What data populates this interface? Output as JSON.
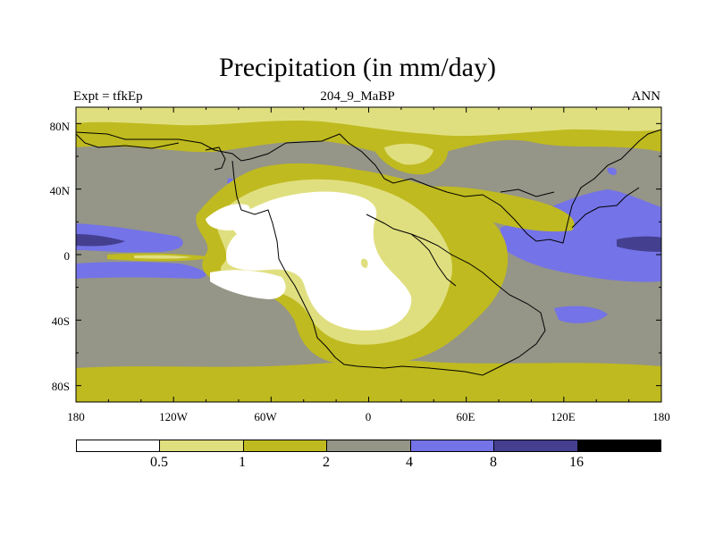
{
  "title": "Precipitation (in mm/day)",
  "subtitle_left": "Expt = tfkEp",
  "subtitle_center": "204_9_MaBP",
  "subtitle_right": "ANN",
  "y_ticks": [
    "80N",
    "40N",
    "0",
    "40S",
    "80S"
  ],
  "x_ticks": [
    "180",
    "120W",
    "60W",
    "0",
    "60E",
    "120E",
    "180"
  ],
  "colorbar": {
    "labels": [
      "0.5",
      "1",
      "2",
      "4",
      "8",
      "16"
    ],
    "colors": [
      "#ffffff",
      "#e0df7f",
      "#bfba1f",
      "#959588",
      "#7473e8",
      "#44408f",
      "#000000"
    ]
  }
}
